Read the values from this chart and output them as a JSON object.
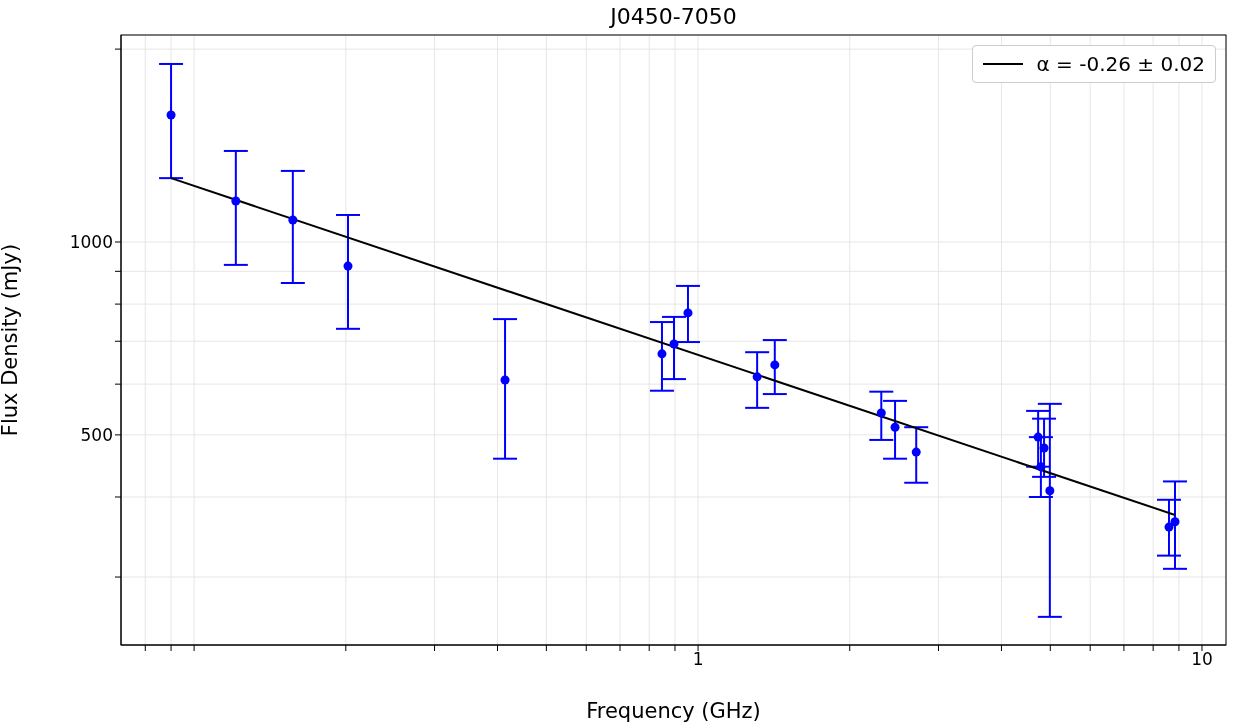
{
  "chart_data": {
    "type": "scatter",
    "title": "J0450-7050",
    "xlabel": "Frequency (GHz)",
    "ylabel": "Flux Density (mJy)",
    "log": "xy",
    "grid": true,
    "legend": "top right",
    "marker": "circle",
    "xlim": [
      0.0716,
      11.16
    ],
    "ylim": [
      235,
      2104
    ],
    "xticks": [
      {
        "value": 0.08,
        "label": null
      },
      {
        "value": 0.09,
        "label": null
      },
      {
        "value": 0.1,
        "label": null
      },
      {
        "value": 0.2,
        "label": null
      },
      {
        "value": 0.3,
        "label": null
      },
      {
        "value": 0.4,
        "label": null
      },
      {
        "value": 0.5,
        "label": null
      },
      {
        "value": 0.6,
        "label": null
      },
      {
        "value": 0.7,
        "label": null
      },
      {
        "value": 0.8,
        "label": null
      },
      {
        "value": 0.9,
        "label": null
      },
      1,
      {
        "value": 2,
        "label": null
      },
      {
        "value": 3,
        "label": null
      },
      {
        "value": 4,
        "label": null
      },
      {
        "value": 5,
        "label": null
      },
      {
        "value": 6,
        "label": null
      },
      {
        "value": 7,
        "label": null
      },
      {
        "value": 8,
        "label": null
      },
      {
        "value": 9,
        "label": null
      },
      10
    ],
    "yticks": [
      {
        "value": 300,
        "label": null
      },
      {
        "value": 400,
        "label": null
      },
      500,
      {
        "value": 600,
        "label": null
      },
      {
        "value": 700,
        "label": null
      },
      {
        "value": 800,
        "label": null
      },
      {
        "value": 900,
        "label": null
      },
      1000,
      {
        "value": 2000,
        "label": null
      }
    ],
    "series": [
      {
        "color": "#0000ff",
        "x": [
          0.09,
          0.121,
          0.157,
          0.202,
          0.414,
          0.848,
          0.896,
          0.955,
          1.31,
          1.42,
          2.31,
          2.46,
          2.71,
          4.73,
          4.79,
          4.86,
          4.99,
          8.6,
          8.84
        ],
        "values": [
          1578,
          1159,
          1082,
          917,
          609,
          669,
          693,
          775,
          616,
          643,
          541,
          514,
          470,
          496,
          446,
          477,
          409,
          359,
          366
        ],
        "errors": [
          [
            1258,
            1896
          ],
          [
            921,
            1387
          ],
          [
            863,
            1291
          ],
          [
            732,
            1102
          ],
          [
            459,
            758
          ],
          [
            586,
            750
          ],
          [
            611,
            764
          ],
          [
            698,
            854
          ],
          [
            551,
            673
          ],
          [
            579,
            703
          ],
          [
            491,
            584
          ],
          [
            459,
            565
          ],
          [
            421,
            514
          ],
          [
            446,
            545
          ],
          [
            400,
            496
          ],
          [
            430,
            530
          ],
          [
            260,
            559
          ],
          [
            324,
            396
          ],
          [
            309,
            423
          ]
        ]
      },
      {
        "type": "line",
        "name": "α = -0.26 ± 0.02",
        "color": "#000000",
        "marker": "none",
        "x": [
          0.09,
          8.84
        ],
        "values": [
          1258,
          375
        ]
      }
    ]
  }
}
